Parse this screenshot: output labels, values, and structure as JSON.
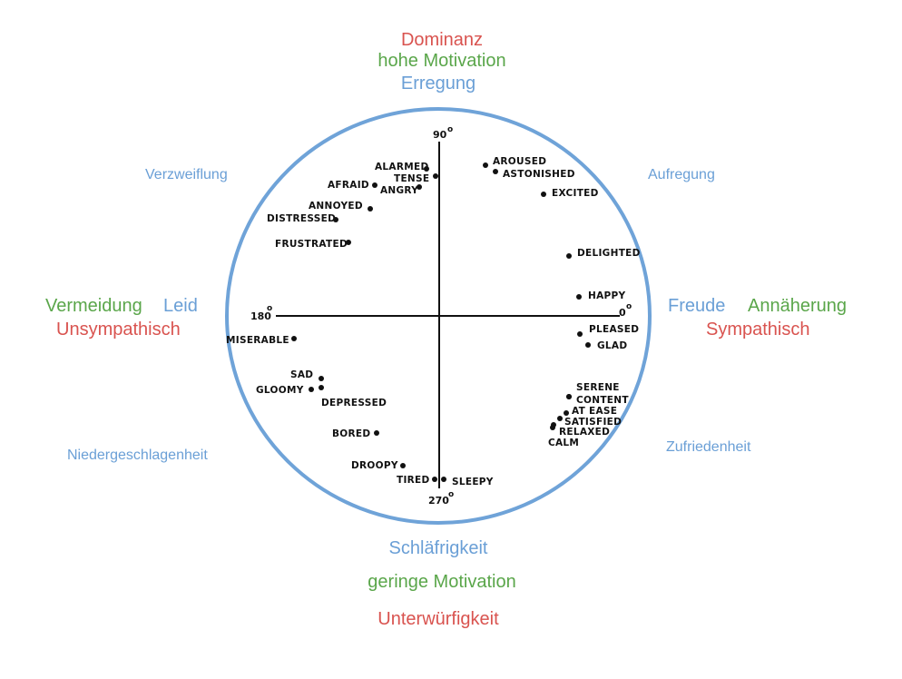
{
  "colors": {
    "red": "#d9534f",
    "green": "#5aa64a",
    "blue": "#6a9fd6",
    "circle": "#6fa3d8",
    "ink": "#111111"
  },
  "top": {
    "dominance": "Dominanz",
    "motivation": "hohe Motivation",
    "arousal": "Erregung"
  },
  "bottom": {
    "sleepiness": "Schläfrigkeit",
    "motivation": "geringe Motivation",
    "submissiveness": "Unterwürfigkeit"
  },
  "left": {
    "avoidance": "Vermeidung",
    "distress": "Leid",
    "unsympathetic": "Unsympathisch"
  },
  "right": {
    "joy": "Freude",
    "approach": "Annäherung",
    "sympathetic": "Sympathisch"
  },
  "diagonals": {
    "upper_left": "Verzweiflung",
    "upper_right": "Aufregung",
    "lower_left": "Niedergeschlagenheit",
    "lower_right": "Zufriedenheit"
  },
  "axis_degrees": {
    "top": "90",
    "right": "0",
    "left": "180",
    "bottom": "270",
    "symbol": "o"
  },
  "moods": [
    {
      "key": "alarmed",
      "label": "ALARMED"
    },
    {
      "key": "tense",
      "label": "TENSE"
    },
    {
      "key": "afraid",
      "label": "AFRAID"
    },
    {
      "key": "angry",
      "label": "ANGRY"
    },
    {
      "key": "annoyed",
      "label": "ANNOYED"
    },
    {
      "key": "distressed",
      "label": "DISTRESSED"
    },
    {
      "key": "frustrated",
      "label": "FRUSTRATED"
    },
    {
      "key": "aroused",
      "label": "AROUSED"
    },
    {
      "key": "astonished",
      "label": "ASTONISHED"
    },
    {
      "key": "excited",
      "label": "EXCITED"
    },
    {
      "key": "delighted",
      "label": "DELIGHTED"
    },
    {
      "key": "happy",
      "label": "HAPPY"
    },
    {
      "key": "pleased",
      "label": "PLEASED"
    },
    {
      "key": "glad",
      "label": "GLAD"
    },
    {
      "key": "serene",
      "label": "SERENE"
    },
    {
      "key": "content",
      "label": "CONTENT"
    },
    {
      "key": "at_ease",
      "label": "AT EASE"
    },
    {
      "key": "satisfied",
      "label": "SATISFIED"
    },
    {
      "key": "relaxed",
      "label": "RELAXED"
    },
    {
      "key": "calm",
      "label": "CALM"
    },
    {
      "key": "miserable",
      "label": "MISERABLE"
    },
    {
      "key": "sad",
      "label": "SAD"
    },
    {
      "key": "gloomy",
      "label": "GLOOMY"
    },
    {
      "key": "depressed",
      "label": "DEPRESSED"
    },
    {
      "key": "bored",
      "label": "BORED"
    },
    {
      "key": "droopy",
      "label": "DROOPY"
    },
    {
      "key": "tired",
      "label": "TIRED"
    },
    {
      "key": "sleepy",
      "label": "SLEEPY"
    }
  ]
}
